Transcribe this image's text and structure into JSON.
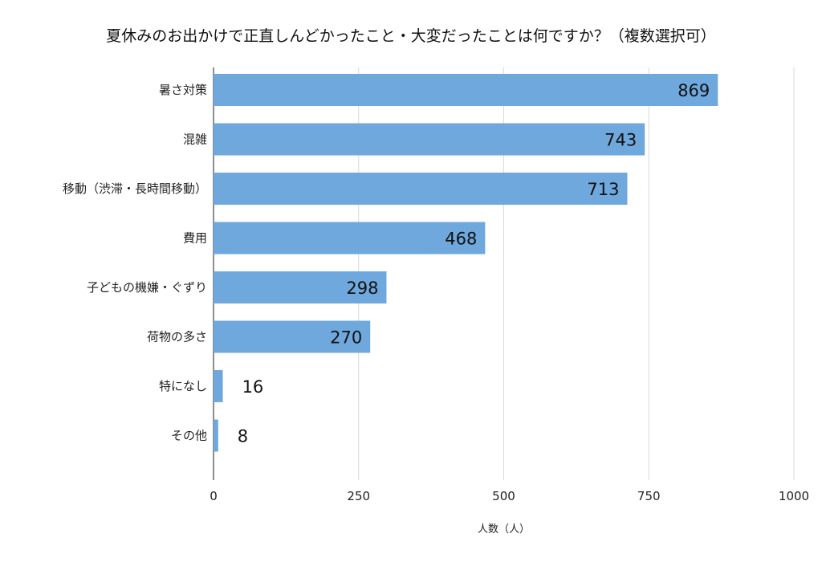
{
  "chart_data": {
    "type": "bar",
    "orientation": "horizontal",
    "title": "夏休みのお出かけで正直しんどかったこと・大変だったことは何ですか？（複数選択可）",
    "xlabel": "人数（人）",
    "ylabel": "",
    "categories": [
      "暑さ対策",
      "混雑",
      "移動（渋滞・長時間移動）",
      "費用",
      "子どもの機嫌・ぐずり",
      "荷物の多さ",
      "特になし",
      "その他"
    ],
    "values": [
      869,
      743,
      713,
      468,
      298,
      270,
      16,
      8
    ],
    "value_labels": [
      "869",
      "743",
      "713",
      "468",
      "298",
      "270",
      "16",
      "8"
    ],
    "xlim": [
      0,
      1000
    ],
    "xticks": [
      0,
      250,
      500,
      750,
      1000
    ],
    "xtick_labels": [
      "0",
      "250",
      "500",
      "750",
      "1000"
    ],
    "grid": "vertical",
    "legend": "none",
    "bar_color": "#6fa8dc",
    "grid_color": "#d9d9d9",
    "axis_color": "#444444"
  }
}
